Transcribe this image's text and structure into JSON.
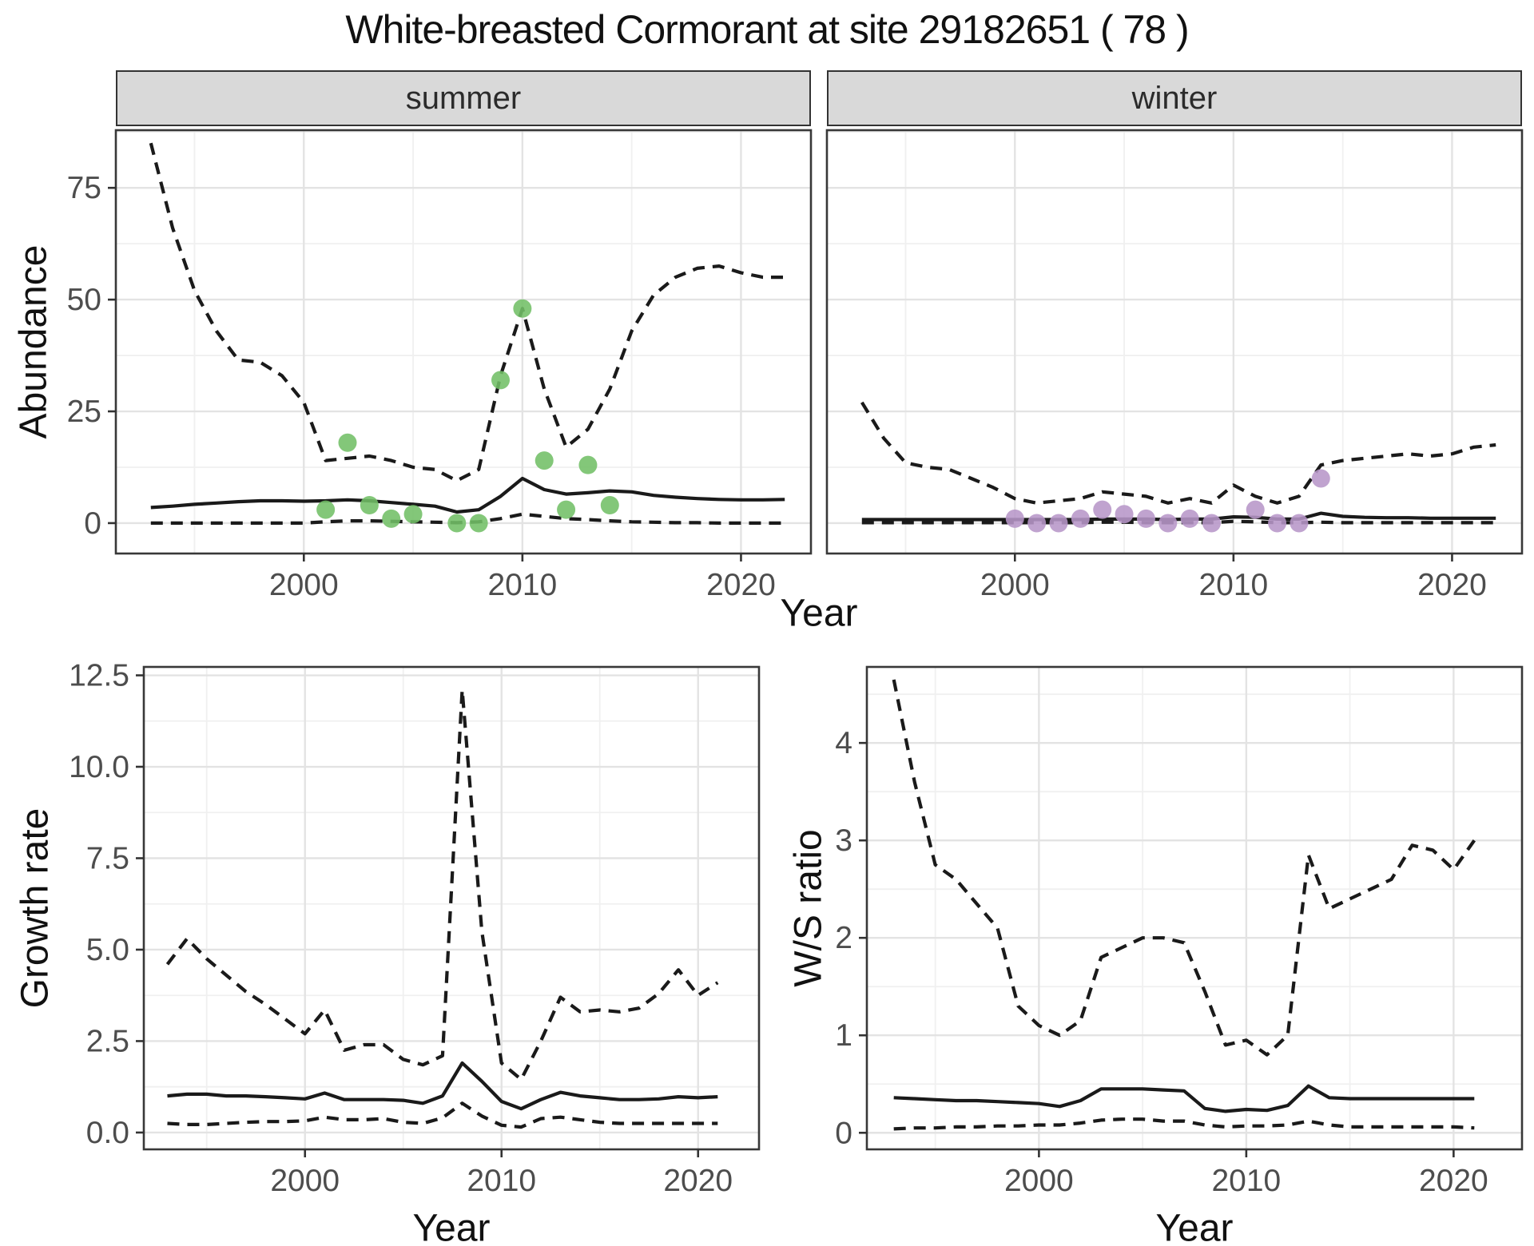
{
  "title": "White-breasted Cormorant at site 29182651 ( 78 )",
  "colors": {
    "summer_points": "#72bf66",
    "winter_points": "#b796c8",
    "line": "#1a1a1a",
    "strip_bg": "#d9d9d9",
    "grid_major": "#e3e3e3",
    "grid_minor": "#f0f0f0",
    "tick_text": "#4d4d4d",
    "panel_border": "#383838"
  },
  "axis_titles": {
    "abundance": "Abundance",
    "year_top": "Year",
    "growth": "Growth rate",
    "year_growth": "Year",
    "ws": "W/S ratio",
    "year_ws": "Year"
  },
  "chart_data": [
    {
      "id": "abundance-summer",
      "type": "line",
      "facet": "summer",
      "ylabel": "Abundance",
      "xlabel": "Year",
      "xlim": [
        1991.4,
        2023.2
      ],
      "ylim": [
        -6.8,
        87.9
      ],
      "xticks": [
        2000,
        2010,
        2020
      ],
      "xtick_labels": [
        "2000",
        "2010",
        "2020"
      ],
      "yticks": [
        0,
        25,
        50,
        75
      ],
      "ytick_labels": [
        "0",
        "25",
        "50",
        "75"
      ],
      "xminor": [
        1995,
        2005,
        2015
      ],
      "yminor": [
        12.5,
        37.5,
        62.5,
        87.5
      ],
      "series": [
        {
          "name": "upper-95ci",
          "style": "dashed",
          "x": [
            1993,
            1994,
            1995,
            1996,
            1997,
            1998,
            1999,
            2000,
            2001,
            2002,
            2003,
            2004,
            2005,
            2006,
            2007,
            2008,
            2009,
            2010,
            2011,
            2012,
            2013,
            2014,
            2015,
            2016,
            2017,
            2018,
            2019,
            2020,
            2021,
            2022
          ],
          "y": [
            85,
            66,
            52,
            43,
            36.5,
            36,
            33,
            27,
            14,
            14.5,
            15,
            14,
            12.5,
            12,
            9.5,
            12,
            33,
            48,
            30,
            17,
            21,
            30,
            43,
            51,
            55,
            57,
            57.5,
            56,
            55,
            55
          ]
        },
        {
          "name": "median",
          "style": "solid",
          "x": [
            1993,
            1994,
            1995,
            1996,
            1997,
            1998,
            1999,
            2000,
            2001,
            2002,
            2003,
            2004,
            2005,
            2006,
            2007,
            2008,
            2009,
            2010,
            2011,
            2012,
            2013,
            2014,
            2015,
            2016,
            2017,
            2018,
            2019,
            2020,
            2021,
            2022
          ],
          "y": [
            3.5,
            3.8,
            4.2,
            4.5,
            4.8,
            5,
            5,
            4.9,
            5,
            5.2,
            5,
            4.6,
            4.2,
            3.8,
            2.5,
            3,
            6,
            10,
            7.5,
            6.5,
            6.8,
            7.2,
            7,
            6.2,
            5.8,
            5.5,
            5.3,
            5.2,
            5.2,
            5.3
          ]
        },
        {
          "name": "lower-95ci",
          "style": "dashed",
          "x": [
            1993,
            1994,
            1995,
            1996,
            1997,
            1998,
            1999,
            2000,
            2001,
            2002,
            2003,
            2004,
            2005,
            2006,
            2007,
            2008,
            2009,
            2010,
            2011,
            2012,
            2013,
            2014,
            2015,
            2016,
            2017,
            2018,
            2019,
            2020,
            2021,
            2022
          ],
          "y": [
            0,
            0,
            0,
            0,
            0,
            0,
            0,
            0,
            0.3,
            0.5,
            0.5,
            0.4,
            0.3,
            0.2,
            0.1,
            0.3,
            1,
            2,
            1.5,
            1,
            0.8,
            0.5,
            0.3,
            0.2,
            0.1,
            0.1,
            0,
            0,
            0,
            0
          ]
        },
        {
          "name": "observed-counts",
          "style": "points",
          "color_key": "summer_points",
          "x": [
            2001,
            2002,
            2003,
            2004,
            2005,
            2007,
            2008,
            2009,
            2010,
            2011,
            2012,
            2013,
            2014
          ],
          "y": [
            3,
            18,
            4,
            1,
            2,
            0,
            0,
            32,
            48,
            14,
            3,
            13,
            4
          ]
        }
      ]
    },
    {
      "id": "abundance-winter",
      "type": "line",
      "facet": "winter",
      "ylabel": "Abundance",
      "xlabel": "Year",
      "xlim": [
        1991.4,
        2023.2
      ],
      "ylim": [
        -6.8,
        87.9
      ],
      "xticks": [
        2000,
        2010,
        2020
      ],
      "xtick_labels": [
        "2000",
        "2010",
        "2020"
      ],
      "yticks": [
        0,
        25,
        50,
        75
      ],
      "ytick_labels": [
        "0",
        "25",
        "50",
        "75"
      ],
      "xminor": [
        1995,
        2005,
        2015
      ],
      "yminor": [
        12.5,
        37.5,
        62.5,
        87.5
      ],
      "series": [
        {
          "name": "upper-95ci",
          "style": "dashed",
          "x": [
            1993,
            1994,
            1995,
            1996,
            1997,
            1998,
            1999,
            2000,
            2001,
            2002,
            2003,
            2004,
            2005,
            2006,
            2007,
            2008,
            2009,
            2010,
            2011,
            2012,
            2013,
            2014,
            2015,
            2016,
            2017,
            2018,
            2019,
            2020,
            2021,
            2022
          ],
          "y": [
            27,
            19,
            13.5,
            12.5,
            12,
            10,
            8,
            5.5,
            4.5,
            5,
            5.5,
            7,
            6.5,
            6,
            4.5,
            5.5,
            4.5,
            8.5,
            6,
            4.5,
            6,
            13,
            14,
            14.5,
            15,
            15.5,
            15,
            15.5,
            17,
            17.5
          ]
        },
        {
          "name": "median",
          "style": "solid",
          "x": [
            1993,
            1994,
            1995,
            1996,
            1997,
            1998,
            1999,
            2000,
            2001,
            2002,
            2003,
            2004,
            2005,
            2006,
            2007,
            2008,
            2009,
            2010,
            2011,
            2012,
            2013,
            2014,
            2015,
            2016,
            2017,
            2018,
            2019,
            2020,
            2021,
            2022
          ],
          "y": [
            0.8,
            0.8,
            0.8,
            0.8,
            0.8,
            0.8,
            0.8,
            0.8,
            0.8,
            0.8,
            0.8,
            0.9,
            0.9,
            0.9,
            0.8,
            0.9,
            0.9,
            1.4,
            1.3,
            0.9,
            0.9,
            2.2,
            1.5,
            1.3,
            1.2,
            1.2,
            1.1,
            1.1,
            1.1,
            1.1
          ]
        },
        {
          "name": "lower-95ci",
          "style": "dashed",
          "x": [
            1993,
            1994,
            1995,
            1996,
            1997,
            1998,
            1999,
            2000,
            2001,
            2002,
            2003,
            2004,
            2005,
            2006,
            2007,
            2008,
            2009,
            2010,
            2011,
            2012,
            2013,
            2014,
            2015,
            2016,
            2017,
            2018,
            2019,
            2020,
            2021,
            2022
          ],
          "y": [
            0.1,
            0.1,
            0.1,
            0.1,
            0.1,
            0.1,
            0.1,
            0.1,
            0.1,
            0.1,
            0.1,
            0.2,
            0.2,
            0.1,
            0.1,
            0.1,
            0.1,
            0.4,
            0.3,
            0.1,
            0.1,
            0.2,
            0.1,
            0.1,
            0.1,
            0.1,
            0.1,
            0.1,
            0.1,
            0.1
          ]
        },
        {
          "name": "observed-counts",
          "style": "points",
          "color_key": "winter_points",
          "x": [
            2000,
            2001,
            2002,
            2003,
            2004,
            2005,
            2006,
            2007,
            2008,
            2009,
            2011,
            2012,
            2013,
            2014
          ],
          "y": [
            1,
            0,
            0,
            1,
            3,
            2,
            1,
            0,
            1,
            0,
            3,
            0,
            0,
            10
          ]
        }
      ]
    },
    {
      "id": "growth-rate",
      "type": "line",
      "facet": "",
      "ylabel": "Growth rate",
      "xlabel": "Year",
      "xlim": [
        1991.8,
        2023.1
      ],
      "ylim": [
        -0.46,
        12.73
      ],
      "xticks": [
        2000,
        2010,
        2020
      ],
      "xtick_labels": [
        "2000",
        "2010",
        "2020"
      ],
      "yticks": [
        0,
        2.5,
        5,
        7.5,
        10,
        12.5
      ],
      "ytick_labels": [
        "0.0",
        "2.5",
        "5.0",
        "7.5",
        "10.0",
        "12.5"
      ],
      "xminor": [
        1995,
        2005,
        2015
      ],
      "yminor": [
        1.25,
        3.75,
        6.25,
        8.75,
        11.25
      ],
      "series": [
        {
          "name": "upper-95ci",
          "style": "dashed",
          "x": [
            1993,
            1994,
            1995,
            1996,
            1997,
            1998,
            1999,
            2000,
            2001,
            2002,
            2003,
            2004,
            2005,
            2006,
            2007,
            2008,
            2009,
            2010,
            2011,
            2012,
            2013,
            2014,
            2015,
            2016,
            2017,
            2018,
            2019,
            2020,
            2021
          ],
          "y": [
            4.6,
            5.3,
            4.75,
            4.3,
            3.85,
            3.5,
            3.1,
            2.7,
            3.35,
            2.25,
            2.4,
            2.4,
            2,
            1.85,
            2.1,
            12.1,
            5.5,
            1.9,
            1.45,
            2.5,
            3.7,
            3.3,
            3.35,
            3.3,
            3.4,
            3.8,
            4.45,
            3.75,
            4.1
          ]
        },
        {
          "name": "median",
          "style": "solid",
          "x": [
            1993,
            1994,
            1995,
            1996,
            1997,
            1998,
            1999,
            2000,
            2001,
            2002,
            2003,
            2004,
            2005,
            2006,
            2007,
            2008,
            2009,
            2010,
            2011,
            2012,
            2013,
            2014,
            2015,
            2016,
            2017,
            2018,
            2019,
            2020,
            2021
          ],
          "y": [
            1,
            1.05,
            1.05,
            1,
            1,
            0.98,
            0.95,
            0.92,
            1.08,
            0.9,
            0.9,
            0.9,
            0.88,
            0.8,
            1,
            1.9,
            1.4,
            0.85,
            0.65,
            0.9,
            1.1,
            1,
            0.95,
            0.9,
            0.9,
            0.92,
            0.98,
            0.95,
            0.98
          ]
        },
        {
          "name": "lower-95ci",
          "style": "dashed",
          "x": [
            1993,
            1994,
            1995,
            1996,
            1997,
            1998,
            1999,
            2000,
            2001,
            2002,
            2003,
            2004,
            2005,
            2006,
            2007,
            2008,
            2009,
            2010,
            2011,
            2012,
            2013,
            2014,
            2015,
            2016,
            2017,
            2018,
            2019,
            2020,
            2021
          ],
          "y": [
            0.25,
            0.22,
            0.22,
            0.25,
            0.28,
            0.3,
            0.3,
            0.32,
            0.42,
            0.35,
            0.35,
            0.38,
            0.28,
            0.25,
            0.4,
            0.8,
            0.45,
            0.2,
            0.15,
            0.38,
            0.42,
            0.35,
            0.28,
            0.25,
            0.25,
            0.25,
            0.25,
            0.25,
            0.25
          ]
        }
      ]
    },
    {
      "id": "ws-ratio",
      "type": "line",
      "facet": "",
      "ylabel": "W/S ratio",
      "xlabel": "Year",
      "xlim": [
        1991.7,
        2023.3
      ],
      "ylim": [
        -0.17,
        4.78
      ],
      "xticks": [
        2000,
        2010,
        2020
      ],
      "xtick_labels": [
        "2000",
        "2010",
        "2020"
      ],
      "yticks": [
        0,
        1,
        2,
        3,
        4
      ],
      "ytick_labels": [
        "0",
        "1",
        "2",
        "3",
        "4"
      ],
      "xminor": [
        1995,
        2005,
        2015
      ],
      "yminor": [
        0.5,
        1.5,
        2.5,
        3.5,
        4.5
      ],
      "series": [
        {
          "name": "upper-95ci",
          "style": "dashed",
          "x": [
            1993,
            1994,
            1995,
            1996,
            1997,
            1998,
            1999,
            2000,
            2001,
            2002,
            2003,
            2004,
            2005,
            2006,
            2007,
            2008,
            2009,
            2010,
            2011,
            2012,
            2013,
            2014,
            2015,
            2016,
            2017,
            2018,
            2019,
            2020,
            2021
          ],
          "y": [
            4.65,
            3.6,
            2.75,
            2.6,
            2.35,
            2.1,
            1.3,
            1.1,
            1,
            1.15,
            1.8,
            1.9,
            2,
            2,
            1.95,
            1.45,
            0.9,
            0.95,
            0.8,
            1,
            2.85,
            2.3,
            2.4,
            2.5,
            2.6,
            2.95,
            2.9,
            2.7,
            3
          ]
        },
        {
          "name": "median",
          "style": "solid",
          "x": [
            1993,
            1994,
            1995,
            1996,
            1997,
            1998,
            1999,
            2000,
            2001,
            2002,
            2003,
            2004,
            2005,
            2006,
            2007,
            2008,
            2009,
            2010,
            2011,
            2012,
            2013,
            2014,
            2015,
            2016,
            2017,
            2018,
            2019,
            2020,
            2021
          ],
          "y": [
            0.36,
            0.35,
            0.34,
            0.33,
            0.33,
            0.32,
            0.31,
            0.3,
            0.27,
            0.33,
            0.45,
            0.45,
            0.45,
            0.44,
            0.43,
            0.25,
            0.22,
            0.24,
            0.23,
            0.28,
            0.48,
            0.36,
            0.35,
            0.35,
            0.35,
            0.35,
            0.35,
            0.35,
            0.35
          ]
        },
        {
          "name": "lower-95ci",
          "style": "dashed",
          "x": [
            1993,
            1994,
            1995,
            1996,
            1997,
            1998,
            1999,
            2000,
            2001,
            2002,
            2003,
            2004,
            2005,
            2006,
            2007,
            2008,
            2009,
            2010,
            2011,
            2012,
            2013,
            2014,
            2015,
            2016,
            2017,
            2018,
            2019,
            2020,
            2021
          ],
          "y": [
            0.04,
            0.05,
            0.05,
            0.06,
            0.06,
            0.07,
            0.07,
            0.08,
            0.08,
            0.1,
            0.13,
            0.14,
            0.14,
            0.12,
            0.12,
            0.08,
            0.06,
            0.07,
            0.07,
            0.08,
            0.12,
            0.08,
            0.06,
            0.06,
            0.06,
            0.06,
            0.06,
            0.06,
            0.05
          ]
        }
      ]
    }
  ]
}
